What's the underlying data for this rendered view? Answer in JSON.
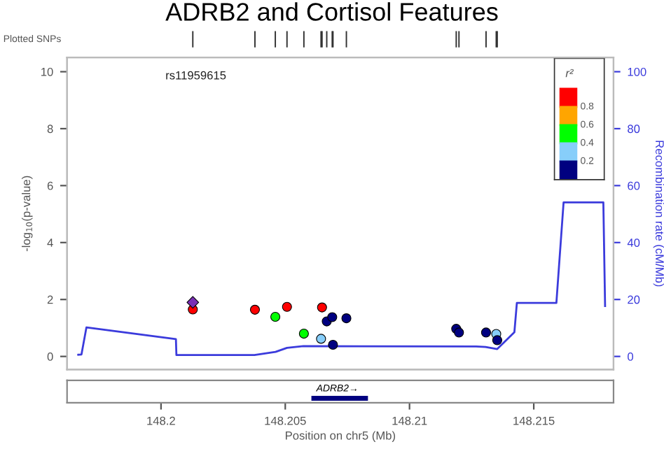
{
  "chart_data": {
    "type": "scatter",
    "title": "ADRB2 and Cortisol Features",
    "xlabel": "Position on chr5 (Mb)",
    "ylabel": "-log$_{10}$(p-value)",
    "y2label": "Recombination rate (cM/Mb)",
    "xlim": [
      148.19622,
      148.21821
    ],
    "xticks": [
      148.2,
      148.205,
      148.21,
      148.215
    ],
    "ylim": [
      -0.46,
      10.5
    ],
    "yticks": [
      0,
      2,
      4,
      6,
      8,
      10
    ],
    "y2lim": [
      -4.6,
      105
    ],
    "y2ticks": [
      0,
      20,
      40,
      60,
      80,
      100
    ],
    "annotations": [
      "Plotted SNPs",
      "rs11959615",
      "ADRB2→",
      "r²",
      "0.8",
      "0.6",
      "0.4",
      "0.2"
    ],
    "series": [
      {
        "marker": "diamond",
        "color": "#7a2fb5",
        "x": [
          148.20128
        ],
        "values": [
          1.9
        ]
      },
      {
        "marker": "circle",
        "x": [
          148.20128,
          148.20378,
          148.2046,
          148.20507,
          148.20575,
          148.20648,
          148.20644,
          148.20667,
          148.20689,
          148.20692,
          148.20746,
          148.21188,
          148.21199,
          148.21308,
          148.21349,
          148.21353
        ],
        "values": [
          1.65,
          1.64,
          1.39,
          1.74,
          0.8,
          1.72,
          0.62,
          1.23,
          1.38,
          0.41,
          1.34,
          0.97,
          0.84,
          0.84,
          0.79,
          0.57
        ],
        "colors": [
          "#ff0000",
          "#ff0000",
          "#00ff00",
          "#ff0000",
          "#00ff00",
          "#ff0000",
          "#87cefa",
          "#000080",
          "#000080",
          "#000080",
          "#000080",
          "#000080",
          "#000080",
          "#000080",
          "#87cefa",
          "#000080"
        ]
      },
      {
        "type": "line",
        "axis": "y2",
        "color": "#3b3bdc",
        "x": [
          148.19667,
          148.1968,
          148.197,
          148.2006,
          148.20062,
          148.20376,
          148.20461,
          148.20507,
          148.20573,
          148.21268,
          148.21306,
          148.21353,
          148.21422,
          148.21432,
          148.21591,
          148.2162,
          148.2178,
          148.21787
        ],
        "values": [
          0.6,
          0.7,
          10.2,
          6.1,
          0.5,
          0.5,
          1.6,
          3.0,
          3.6,
          3.5,
          3.3,
          2.6,
          8.5,
          18.8,
          18.8,
          54.1,
          54.1,
          17.7
        ]
      }
    ]
  }
}
